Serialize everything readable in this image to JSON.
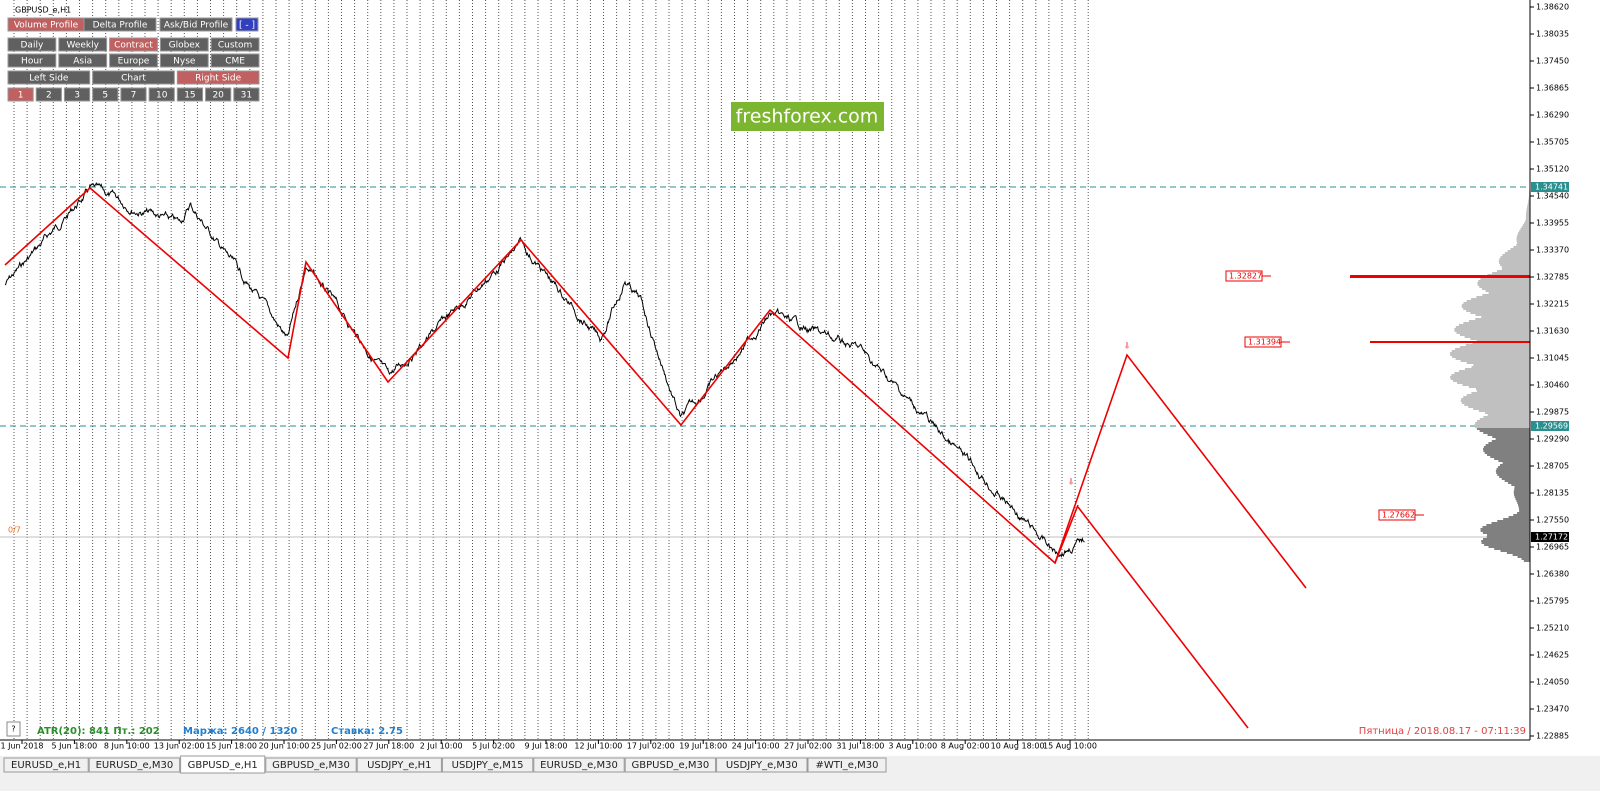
{
  "window_title": "GBPUSD_e,H1",
  "buttons": {
    "row1": [
      "Volume Profile",
      "Delta Profile",
      "Ask/Bid Profile",
      "[ - ]"
    ],
    "row2": [
      "Daily",
      "Weekly",
      "Contract",
      "Globex",
      "Custom"
    ],
    "row3": [
      "Hour",
      "Asia",
      "Europe",
      "Nyse",
      "CME"
    ],
    "row4": [
      "Left Side",
      "Chart",
      "Right Side"
    ],
    "row5": [
      "1",
      "2",
      "3",
      "5",
      "7",
      "10",
      "15",
      "20",
      "31"
    ]
  },
  "watermark": "freshforex.com",
  "price_axis": [
    "1.38620",
    "1.38035",
    "1.37450",
    "1.36865",
    "1.36290",
    "1.35705",
    "1.35120",
    "1.34540",
    "1.33955",
    "1.33370",
    "1.32785",
    "1.32215",
    "1.31630",
    "1.31045",
    "1.30460",
    "1.29875",
    "1.29290",
    "1.28705",
    "1.28135",
    "1.27550",
    "1.26965",
    "1.26380",
    "1.25795",
    "1.25210",
    "1.24625",
    "1.24050",
    "1.23470",
    "1.22885"
  ],
  "price_markers": [
    "1.34741",
    "1.29569",
    "1.27172"
  ],
  "level_labels": [
    "1.32827",
    "1.31394",
    "1.27662"
  ],
  "time_axis": [
    "1 Jun 2018",
    "5 Jun 18:00",
    "8 Jun 10:00",
    "13 Jun 02:00",
    "15 Jun 18:00",
    "20 Jun 10:00",
    "25 Jun 02:00",
    "27 Jun 18:00",
    "2 Jul 10:00",
    "5 Jul 02:00",
    "9 Jul 18:00",
    "12 Jul 10:00",
    "17 Jul 02:00",
    "19 Jul 18:00",
    "24 Jul 10:00",
    "27 Jul 02:00",
    "31 Jul 18:00",
    "3 Aug 10:00",
    "8 Aug 02:00",
    "10 Aug 18:00",
    "15 Aug 10:00"
  ],
  "status": {
    "zigzag": "0/7",
    "atr": "ATR(20): 841  Пт.: 202",
    "margin": "Маржа: 2640 / 1320",
    "rate": "Ставка: 2.75",
    "clock": "Пятница / 2018.08.17 - 07:11:39",
    "help": "?"
  },
  "tabs": [
    "EURUSD_e,H1",
    "EURUSD_e,M30",
    "GBPUSD_e,H1",
    "GBPUSD_e,M30",
    "USDJPY_e,H1",
    "USDJPY_e,M15",
    "EURUSD_e,M30",
    "GBPUSD_e,M30",
    "USDJPY_e,M30",
    "#WTI_e,M30"
  ]
}
